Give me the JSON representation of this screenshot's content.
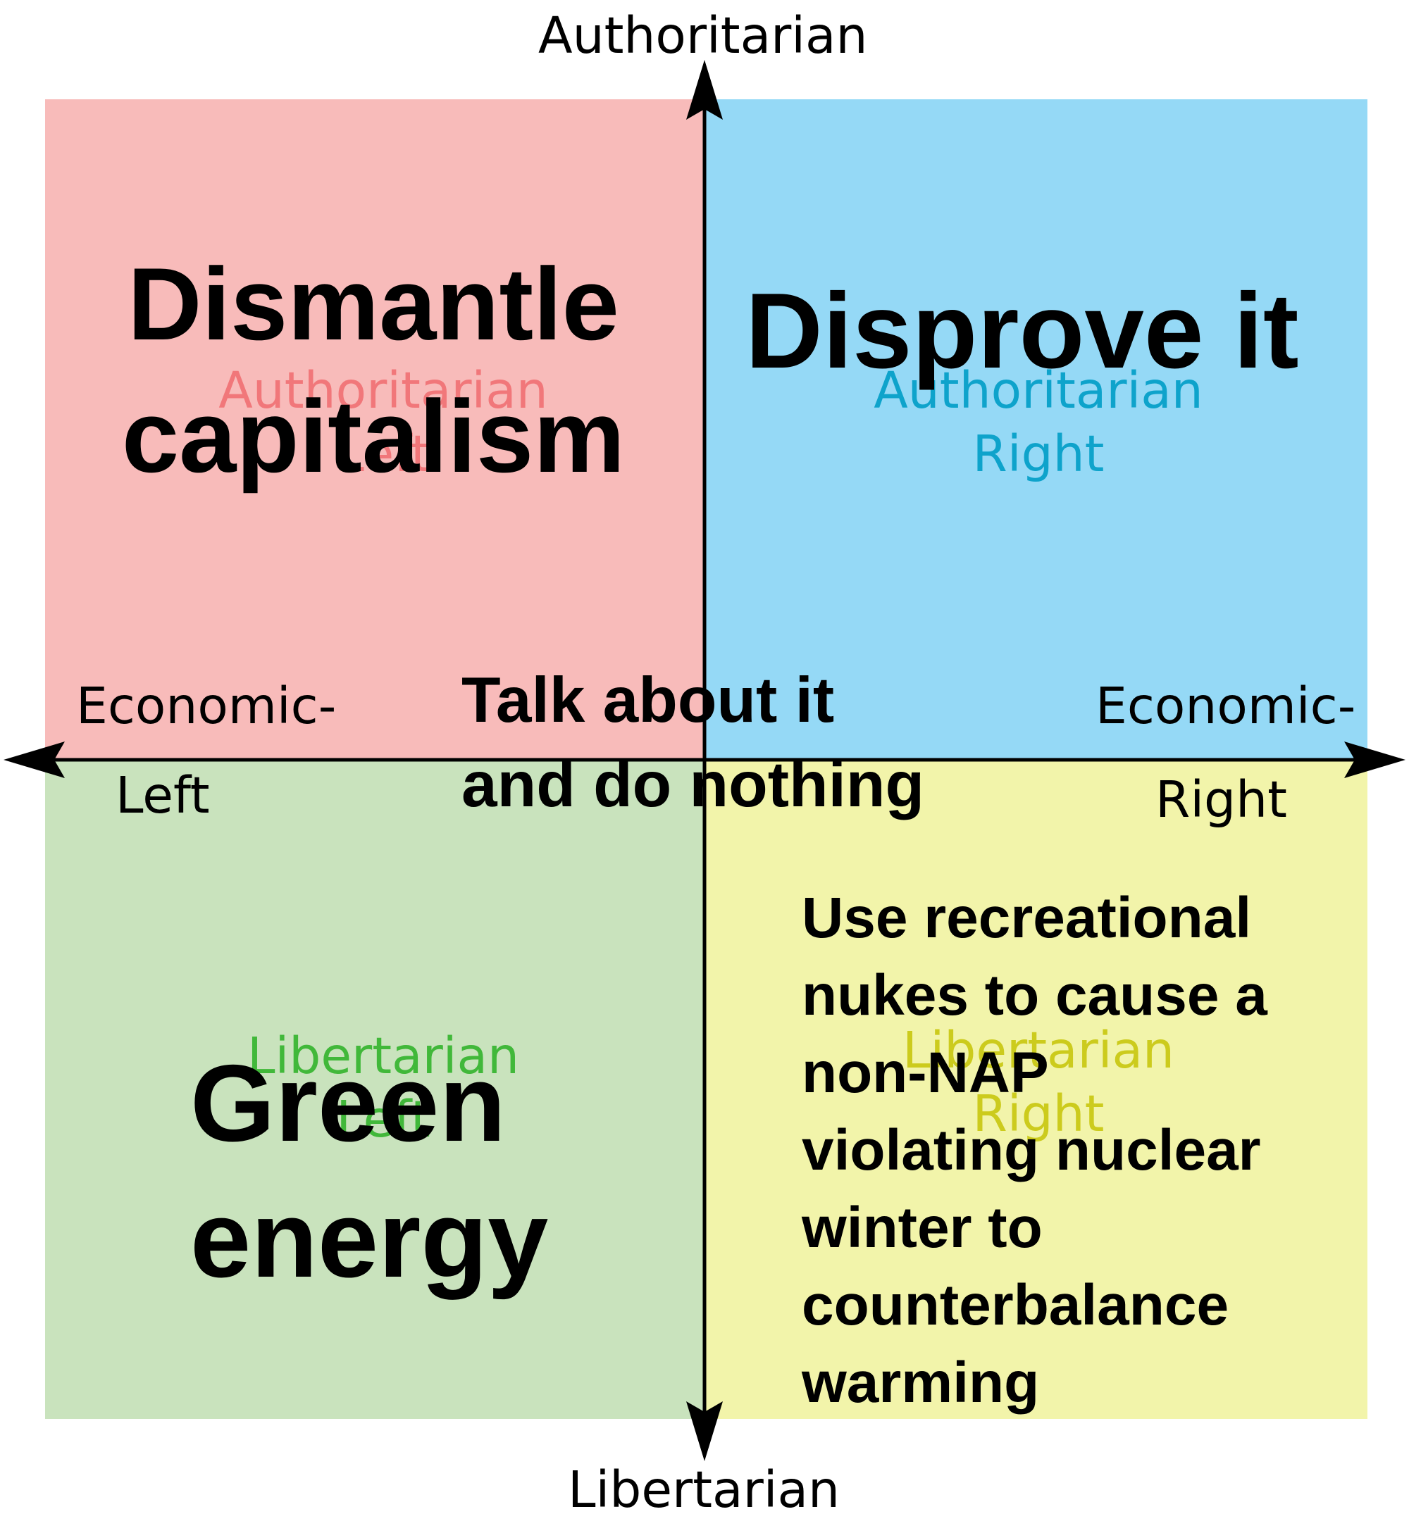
{
  "colors": {
    "auth_left": "#f8bbba",
    "auth_right": "#95d9f6",
    "lib_left": "#c9e3bd",
    "lib_right": "#f2f4aa",
    "auth_left_text": "#f1777a",
    "auth_right_text": "#0ea3cb",
    "lib_left_text": "#41b83a",
    "lib_right_text": "#cccb1d",
    "axis": "#000000"
  },
  "axes": {
    "top": "Authoritarian",
    "bottom": "Libertarian",
    "left_line1": "Economic-",
    "left_line2": "Left",
    "right_line1": "Economic-",
    "right_line2": "Right"
  },
  "quadrant_labels": {
    "auth_left": [
      "Authoritarian",
      "Left"
    ],
    "auth_right": [
      "Authoritarian",
      "Right"
    ],
    "lib_left": [
      "Libertarian",
      "Left"
    ],
    "lib_right": [
      "Libertarian",
      "Right"
    ]
  },
  "captions": {
    "auth_left": [
      "Dismantle",
      "capitalism"
    ],
    "auth_right": [
      "Disprove it"
    ],
    "center": [
      "Talk about it",
      "and do nothing"
    ],
    "lib_left": [
      "Green",
      "energy"
    ],
    "lib_right": [
      "Use recreational",
      "nukes to cause a",
      "non-NAP",
      "violating nuclear",
      "winter to",
      "counterbalance",
      "warming"
    ]
  }
}
